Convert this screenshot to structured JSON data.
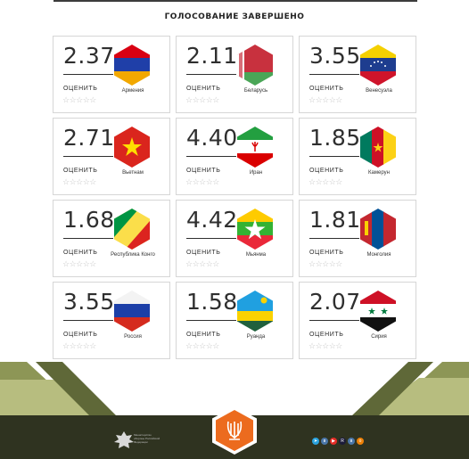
{
  "page": {
    "title": "ГОЛОСОВАНИЕ ЗАВЕРШЕНО"
  },
  "rate_label": "ОЦЕНИТЬ",
  "cards": [
    {
      "score": "2.37",
      "country": "Армения",
      "flag": "armenia"
    },
    {
      "score": "2.11",
      "country": "Беларусь",
      "flag": "belarus"
    },
    {
      "score": "3.55",
      "country": "Венесуэла",
      "flag": "venezuela"
    },
    {
      "score": "2.71",
      "country": "Вьетнам",
      "flag": "vietnam"
    },
    {
      "score": "4.40",
      "country": "Иран",
      "flag": "iran"
    },
    {
      "score": "1.85",
      "country": "Камерун",
      "flag": "cameroon"
    },
    {
      "score": "1.68",
      "country": "Республика Конго",
      "flag": "congo"
    },
    {
      "score": "4.42",
      "country": "Мьянма",
      "flag": "myanmar"
    },
    {
      "score": "1.81",
      "country": "Монголия",
      "flag": "mongolia"
    },
    {
      "score": "3.55",
      "country": "Россия",
      "flag": "russia"
    },
    {
      "score": "1.58",
      "country": "Руанда",
      "flag": "rwanda"
    },
    {
      "score": "2.07",
      "country": "Сирия",
      "flag": "syria"
    }
  ],
  "footer": {
    "emblem_caption": "Министерство обороны Российской Федерации",
    "social_icons": [
      "telegram-icon",
      "vk-icon",
      "youtube-icon",
      "rutube-icon",
      "vk-icon",
      "ok-icon"
    ]
  },
  "colors": {
    "footer_dark": "#2f3320",
    "olive": "#8d9656",
    "olive_light": "#b7bd7f",
    "logo_orange": "#ec6b1e"
  }
}
